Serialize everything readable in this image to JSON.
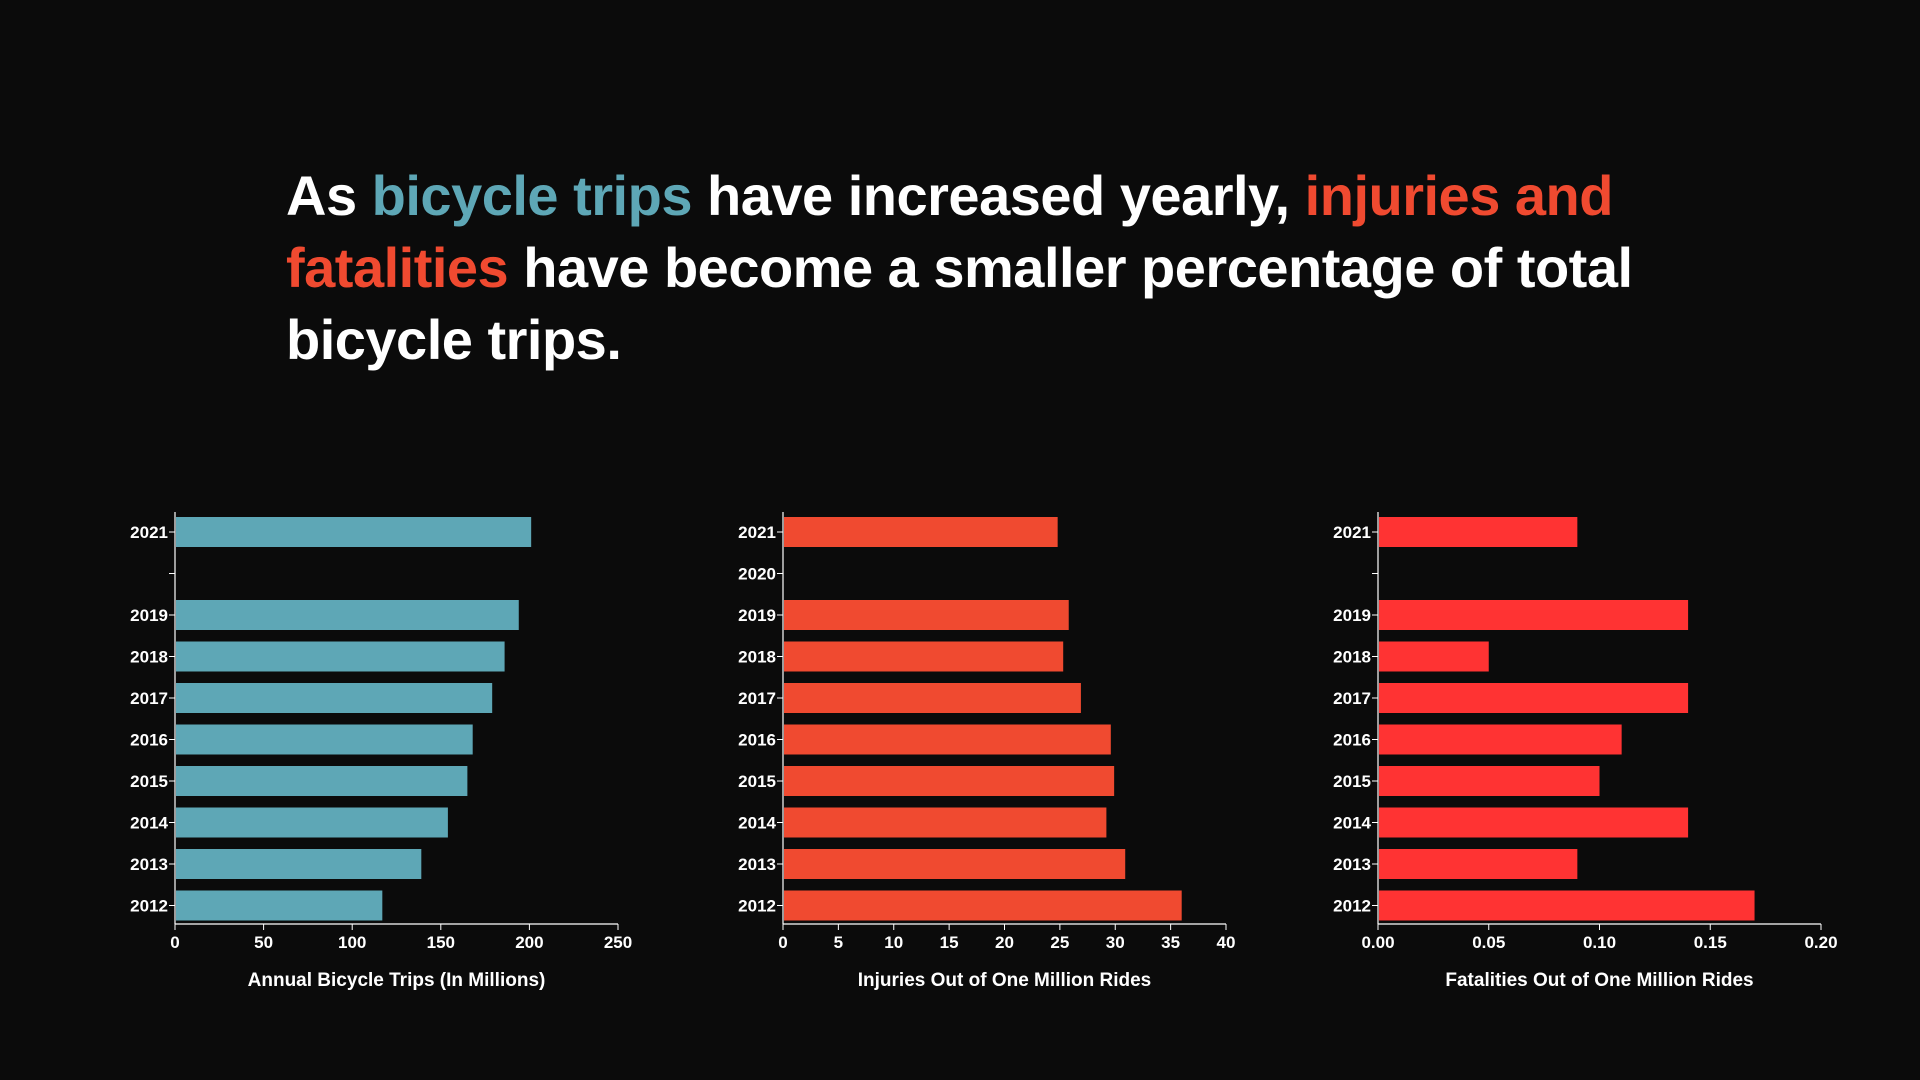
{
  "headline": {
    "part1": "As ",
    "part2": "bicycle trips",
    "part3": " have increased yearly, ",
    "part4": "injuries and fatalities",
    "part5": " have become a smaller percentage of total bicycle trips."
  },
  "colors": {
    "background": "#0b0b0b",
    "trips": "#5ea7b6",
    "injuries": "#f04a30",
    "fatalities": "#ff3333",
    "text": "#ffffff"
  },
  "chart_data": [
    {
      "type": "bar",
      "orientation": "horizontal",
      "categories": [
        "2021",
        "",
        "2019",
        "2018",
        "2017",
        "2016",
        "2015",
        "2014",
        "2013",
        "2012"
      ],
      "values": [
        201,
        null,
        194,
        186,
        179,
        168,
        165,
        154,
        139,
        117
      ],
      "xlabel": "Annual Bicycle Trips (In Millions)",
      "xlim": [
        0,
        250
      ],
      "xticks": [
        "0",
        "50",
        "100",
        "150",
        "200",
        "250"
      ],
      "color": "#5ea7b6",
      "grid": false
    },
    {
      "type": "bar",
      "orientation": "horizontal",
      "categories": [
        "2021",
        "2020",
        "2019",
        "2018",
        "2017",
        "2016",
        "2015",
        "2014",
        "2013",
        "2012"
      ],
      "values": [
        24.8,
        null,
        25.8,
        25.3,
        26.9,
        29.6,
        29.9,
        29.2,
        30.9,
        36.0
      ],
      "xlabel": "Injuries Out of One Million Rides",
      "xlim": [
        0,
        40
      ],
      "xticks": [
        "0",
        "5",
        "10",
        "15",
        "20",
        "25",
        "30",
        "35",
        "40"
      ],
      "color": "#f04a30",
      "grid": false
    },
    {
      "type": "bar",
      "orientation": "horizontal",
      "categories": [
        "2021",
        "",
        "2019",
        "2018",
        "2017",
        "2016",
        "2015",
        "2014",
        "2013",
        "2012"
      ],
      "values": [
        0.09,
        null,
        0.14,
        0.05,
        0.14,
        0.11,
        0.1,
        0.14,
        0.09,
        0.17
      ],
      "xlabel": "Fatalities Out of One Million Rides",
      "xlim": [
        0,
        0.2
      ],
      "xticks": [
        "0.00",
        "0.05",
        "0.10",
        "0.15",
        "0.20"
      ],
      "color": "#ff3333",
      "grid": false
    }
  ]
}
